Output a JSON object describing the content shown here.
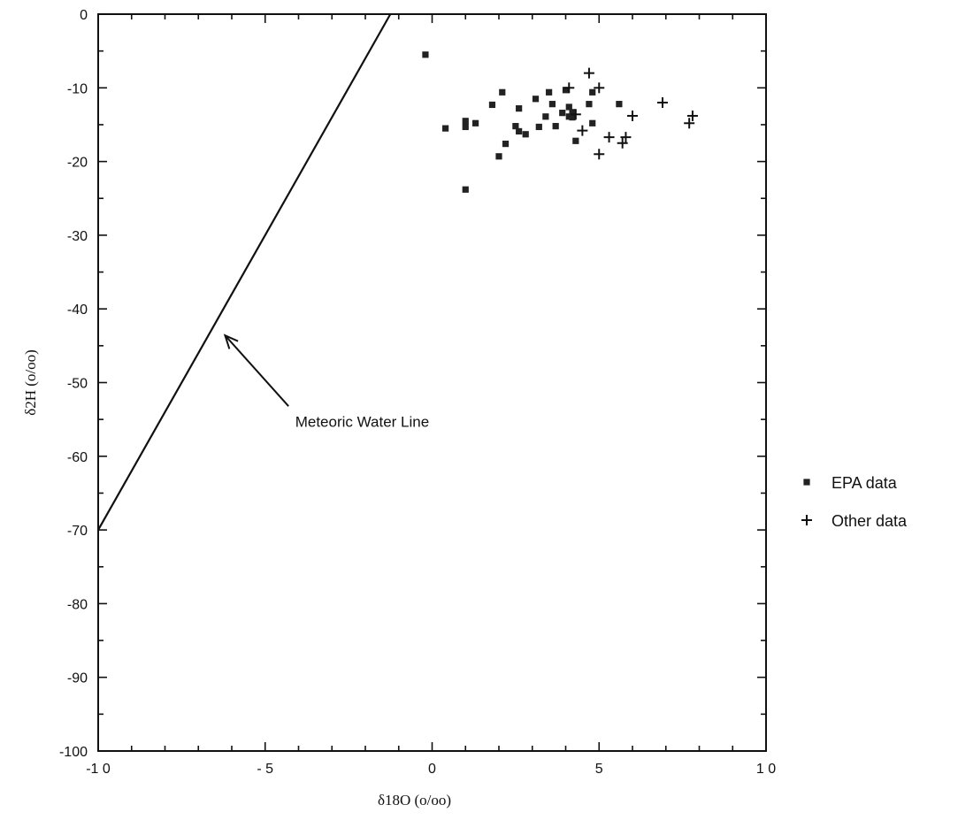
{
  "chart_data": {
    "type": "scatter",
    "title": "",
    "xlabel": "δ18O (o/oo)",
    "ylabel": "δ2H (o/oo)",
    "xlim": [
      -10,
      10
    ],
    "ylim": [
      -100,
      0
    ],
    "x_ticks": [
      -10,
      -5,
      0,
      5,
      10
    ],
    "x_tick_labels": [
      "-1 0",
      "- 5",
      "0",
      "5",
      "1 0"
    ],
    "y_ticks": [
      0,
      -10,
      -20,
      -30,
      -40,
      -50,
      -60,
      -70,
      -80,
      -90,
      -100
    ],
    "y_tick_labels": [
      "0",
      "-10",
      "-20",
      "-30",
      "-40",
      "-50",
      "-60",
      "-70",
      "-80",
      "-90",
      "-100"
    ],
    "grid": false,
    "legend_position": "right",
    "series": [
      {
        "name": "EPA data",
        "marker": "square",
        "color": "#222222",
        "points": [
          [
            -0.2,
            -5.5
          ],
          [
            0.4,
            -15.5
          ],
          [
            1.0,
            -14.5
          ],
          [
            1.0,
            -15.3
          ],
          [
            1.3,
            -14.8
          ],
          [
            1.0,
            -23.8
          ],
          [
            1.8,
            -12.3
          ],
          [
            2.1,
            -10.6
          ],
          [
            2.0,
            -19.3
          ],
          [
            2.2,
            -17.6
          ],
          [
            2.5,
            -15.2
          ],
          [
            2.6,
            -12.8
          ],
          [
            2.6,
            -15.9
          ],
          [
            2.8,
            -16.3
          ],
          [
            3.1,
            -11.5
          ],
          [
            3.2,
            -15.3
          ],
          [
            3.4,
            -13.9
          ],
          [
            3.5,
            -10.6
          ],
          [
            3.6,
            -12.2
          ],
          [
            3.7,
            -15.2
          ],
          [
            3.9,
            -13.4
          ],
          [
            4.0,
            -10.3
          ],
          [
            4.1,
            -12.6
          ],
          [
            4.1,
            -13.9
          ],
          [
            4.2,
            -13.3
          ],
          [
            4.3,
            -17.2
          ],
          [
            4.2,
            -14.0
          ],
          [
            4.7,
            -12.2
          ],
          [
            4.8,
            -10.6
          ],
          [
            4.8,
            -14.8
          ],
          [
            5.6,
            -12.2
          ]
        ]
      },
      {
        "name": "Other data",
        "marker": "plus",
        "color": "#222222",
        "points": [
          [
            4.7,
            -8.0
          ],
          [
            5.0,
            -10.0
          ],
          [
            4.1,
            -10.0
          ],
          [
            4.3,
            -13.6
          ],
          [
            4.5,
            -15.8
          ],
          [
            5.0,
            -19.0
          ],
          [
            5.3,
            -16.7
          ],
          [
            5.7,
            -17.5
          ],
          [
            5.8,
            -16.7
          ],
          [
            6.0,
            -13.8
          ],
          [
            6.9,
            -12.0
          ],
          [
            7.7,
            -14.8
          ],
          [
            7.8,
            -13.8
          ]
        ]
      }
    ],
    "reference_line": {
      "name": "Meteoric Water Line",
      "slope": 8,
      "intercept": 10,
      "x_range": [
        -10,
        -1.25
      ]
    },
    "annotation": {
      "text": "Meteoric Water Line",
      "arrow_target": [
        -6.2,
        -43.6
      ],
      "arrow_tail": [
        -4.3,
        -53.2
      ],
      "text_anchor": [
        -4.1,
        -55.3
      ]
    }
  }
}
